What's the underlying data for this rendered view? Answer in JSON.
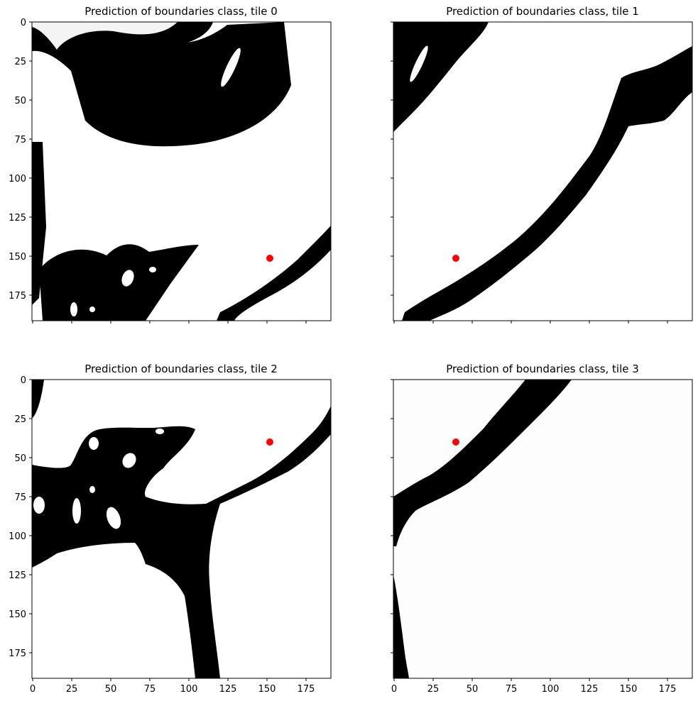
{
  "chart_data": [
    {
      "type": "heatmap",
      "title": "Prediction of boundaries class, tile 0",
      "xlabel": "",
      "ylabel": "",
      "xlim": [
        0,
        191
      ],
      "ylim": [
        191,
        0
      ],
      "x_ticks": [
        0,
        25,
        50,
        75,
        100,
        125,
        150,
        175
      ],
      "y_ticks": [
        0,
        25,
        50,
        75,
        100,
        125,
        150,
        175
      ],
      "x_ticklabels_visible": false,
      "y_ticklabels_visible": true,
      "colormap": "gray",
      "marker": {
        "x": 152,
        "y": 152,
        "color": "#ff0000"
      }
    },
    {
      "type": "heatmap",
      "title": "Prediction of boundaries class, tile 1",
      "xlabel": "",
      "ylabel": "",
      "xlim": [
        0,
        191
      ],
      "ylim": [
        191,
        0
      ],
      "x_ticks": [
        0,
        25,
        50,
        75,
        100,
        125,
        150,
        175
      ],
      "y_ticks": [
        0,
        25,
        50,
        75,
        100,
        125,
        150,
        175
      ],
      "x_ticklabels_visible": false,
      "y_ticklabels_visible": false,
      "colormap": "gray",
      "marker": {
        "x": 40,
        "y": 152,
        "color": "#ff0000"
      }
    },
    {
      "type": "heatmap",
      "title": "Prediction of boundaries class, tile 2",
      "xlabel": "",
      "ylabel": "",
      "xlim": [
        0,
        191
      ],
      "ylim": [
        191,
        0
      ],
      "x_ticks": [
        0,
        25,
        50,
        75,
        100,
        125,
        150,
        175
      ],
      "y_ticks": [
        0,
        25,
        50,
        75,
        100,
        125,
        150,
        175
      ],
      "x_ticklabels_visible": true,
      "y_ticklabels_visible": true,
      "colormap": "gray",
      "marker": {
        "x": 152,
        "y": 40,
        "color": "#ff0000"
      }
    },
    {
      "type": "heatmap",
      "title": "Prediction of boundaries class, tile 3",
      "xlabel": "",
      "ylabel": "",
      "xlim": [
        0,
        191
      ],
      "ylim": [
        191,
        0
      ],
      "x_ticks": [
        0,
        25,
        50,
        75,
        100,
        125,
        150,
        175
      ],
      "y_ticks": [
        0,
        25,
        50,
        75,
        100,
        125,
        150,
        175
      ],
      "x_ticklabels_visible": true,
      "y_ticklabels_visible": false,
      "colormap": "gray",
      "marker": {
        "x": 40,
        "y": 40,
        "color": "#ff0000"
      }
    }
  ]
}
